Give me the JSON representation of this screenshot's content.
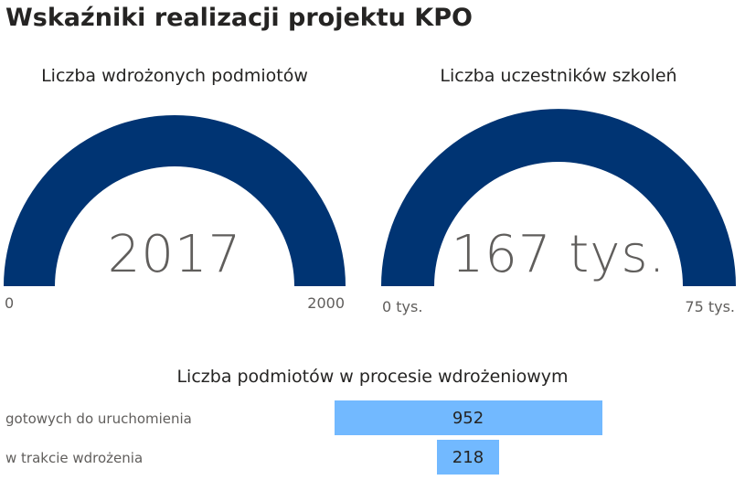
{
  "page": {
    "title": "Wskaźniki realizacji projektu KPO"
  },
  "colors": {
    "gauge_fill": "#003473",
    "funnel_bar": "#72B9FF"
  },
  "chart_data": [
    {
      "type": "gauge",
      "title": "Liczba wdrożonych podmiotów",
      "value": 2017,
      "value_label": "2017",
      "min": 0,
      "max": 2000,
      "min_label": "0",
      "max_label": "2000"
    },
    {
      "type": "gauge",
      "title": "Liczba uczestników szkoleń",
      "value": 167,
      "value_label": "167 tys.",
      "min": 0,
      "max": 75,
      "min_label": "0 tys.",
      "max_label": "75 tys."
    },
    {
      "type": "funnel",
      "title": "Liczba podmiotów w procesie wdrożeniowym",
      "categories": [
        "gotowych do uruchomienia",
        "w trakcie wdrożenia"
      ],
      "values": [
        952,
        218
      ]
    }
  ]
}
